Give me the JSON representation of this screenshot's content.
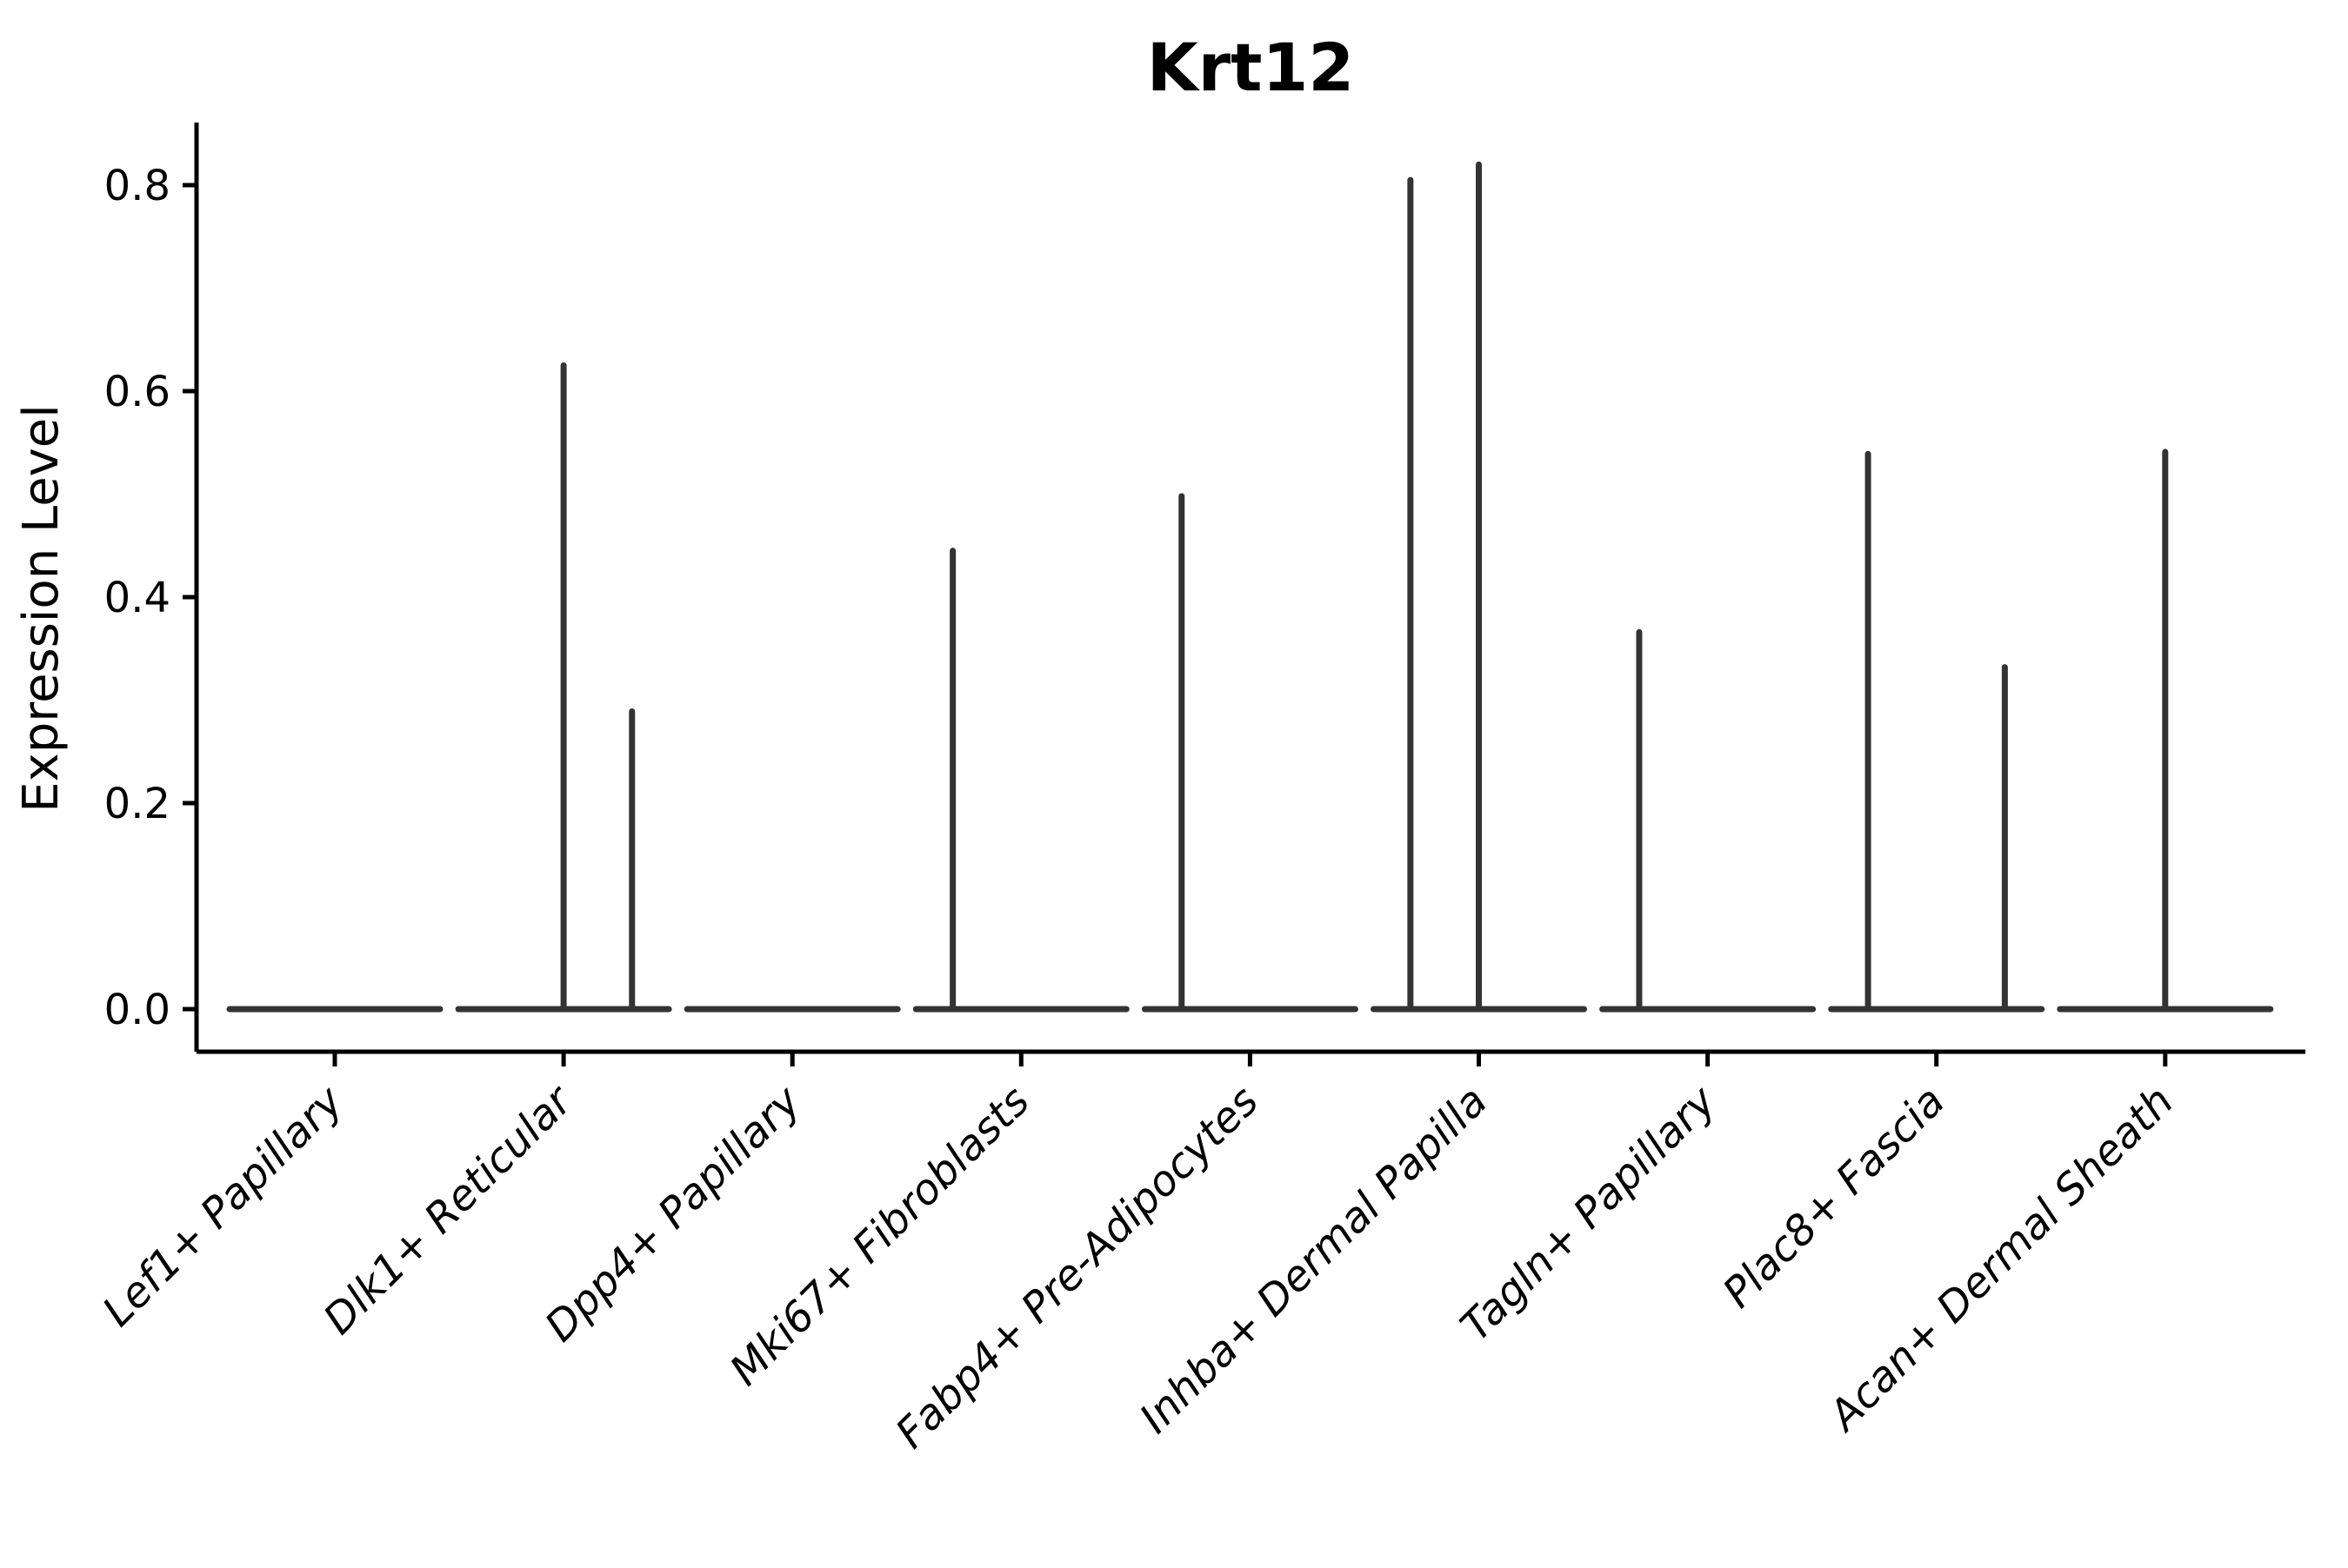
{
  "chart_data": {
    "type": "violin",
    "title": "Krt12",
    "xlabel": "",
    "ylabel": "Expression Level",
    "ylim": [
      0,
      0.86
    ],
    "yticks": [
      0.0,
      0.2,
      0.4,
      0.6,
      0.8
    ],
    "grid": false,
    "legend": "none",
    "violin_color": "#333333",
    "axis_color": "#000000",
    "categories": [
      {
        "label": "Lef1+ Papillary",
        "baseline_value": 0.0,
        "spikes": []
      },
      {
        "label": "Dlk1+ Reticular",
        "baseline_value": 0.0,
        "spikes": [
          {
            "offset": 0.0,
            "value": 0.625
          },
          {
            "offset": 0.65,
            "value": 0.289
          }
        ]
      },
      {
        "label": "Dpp4+ Papillary",
        "baseline_value": 0.0,
        "spikes": []
      },
      {
        "label": "Mki67+ Fibroblasts",
        "baseline_value": 0.0,
        "spikes": [
          {
            "offset": -0.65,
            "value": 0.445
          }
        ]
      },
      {
        "label": "Fabp4+ Pre-Adipocytes",
        "baseline_value": 0.0,
        "spikes": [
          {
            "offset": -0.65,
            "value": 0.498
          }
        ]
      },
      {
        "label": "Inhba+ Dermal Papilla",
        "baseline_value": 0.0,
        "spikes": [
          {
            "offset": -0.65,
            "value": 0.805
          },
          {
            "offset": 0.0,
            "value": 0.82
          }
        ]
      },
      {
        "label": "Tagln+ Papillary",
        "baseline_value": 0.0,
        "spikes": [
          {
            "offset": -0.65,
            "value": 0.366
          }
        ]
      },
      {
        "label": "Plac8+ Fascia",
        "baseline_value": 0.0,
        "spikes": [
          {
            "offset": -0.65,
            "value": 0.539
          },
          {
            "offset": 0.65,
            "value": 0.332
          }
        ]
      },
      {
        "label": "Acan+ Dermal Sheath",
        "baseline_value": 0.0,
        "spikes": [
          {
            "offset": 0.0,
            "value": 0.541
          }
        ]
      }
    ]
  }
}
